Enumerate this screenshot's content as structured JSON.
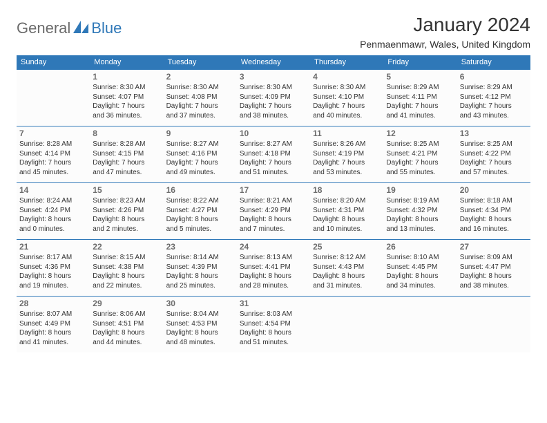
{
  "logo": {
    "part1": "General",
    "part2": "Blue"
  },
  "header": {
    "month_title": "January 2024",
    "location": "Penmaenmawr, Wales, United Kingdom"
  },
  "styling": {
    "accent_color": "#2f78b8",
    "header_bg": "#2f78b8",
    "header_text_color": "#ffffff",
    "body_bg": "#ffffff",
    "cell_bg": "#fcfcfc",
    "date_num_color": "#6b6b6b",
    "text_color": "#333333",
    "border_color": "#2f78b8",
    "month_title_fontsize": 28,
    "location_fontsize": 14,
    "header_fontsize": 11,
    "cell_fontsize": 10,
    "date_fontsize": 12
  },
  "calendar": {
    "columns": [
      "Sunday",
      "Monday",
      "Tuesday",
      "Wednesday",
      "Thursday",
      "Friday",
      "Saturday"
    ],
    "weeks": [
      [
        null,
        {
          "d": "1",
          "sr": "Sunrise: 8:30 AM",
          "ss": "Sunset: 4:07 PM",
          "dl1": "Daylight: 7 hours",
          "dl2": "and 36 minutes."
        },
        {
          "d": "2",
          "sr": "Sunrise: 8:30 AM",
          "ss": "Sunset: 4:08 PM",
          "dl1": "Daylight: 7 hours",
          "dl2": "and 37 minutes."
        },
        {
          "d": "3",
          "sr": "Sunrise: 8:30 AM",
          "ss": "Sunset: 4:09 PM",
          "dl1": "Daylight: 7 hours",
          "dl2": "and 38 minutes."
        },
        {
          "d": "4",
          "sr": "Sunrise: 8:30 AM",
          "ss": "Sunset: 4:10 PM",
          "dl1": "Daylight: 7 hours",
          "dl2": "and 40 minutes."
        },
        {
          "d": "5",
          "sr": "Sunrise: 8:29 AM",
          "ss": "Sunset: 4:11 PM",
          "dl1": "Daylight: 7 hours",
          "dl2": "and 41 minutes."
        },
        {
          "d": "6",
          "sr": "Sunrise: 8:29 AM",
          "ss": "Sunset: 4:12 PM",
          "dl1": "Daylight: 7 hours",
          "dl2": "and 43 minutes."
        }
      ],
      [
        {
          "d": "7",
          "sr": "Sunrise: 8:28 AM",
          "ss": "Sunset: 4:14 PM",
          "dl1": "Daylight: 7 hours",
          "dl2": "and 45 minutes."
        },
        {
          "d": "8",
          "sr": "Sunrise: 8:28 AM",
          "ss": "Sunset: 4:15 PM",
          "dl1": "Daylight: 7 hours",
          "dl2": "and 47 minutes."
        },
        {
          "d": "9",
          "sr": "Sunrise: 8:27 AM",
          "ss": "Sunset: 4:16 PM",
          "dl1": "Daylight: 7 hours",
          "dl2": "and 49 minutes."
        },
        {
          "d": "10",
          "sr": "Sunrise: 8:27 AM",
          "ss": "Sunset: 4:18 PM",
          "dl1": "Daylight: 7 hours",
          "dl2": "and 51 minutes."
        },
        {
          "d": "11",
          "sr": "Sunrise: 8:26 AM",
          "ss": "Sunset: 4:19 PM",
          "dl1": "Daylight: 7 hours",
          "dl2": "and 53 minutes."
        },
        {
          "d": "12",
          "sr": "Sunrise: 8:25 AM",
          "ss": "Sunset: 4:21 PM",
          "dl1": "Daylight: 7 hours",
          "dl2": "and 55 minutes."
        },
        {
          "d": "13",
          "sr": "Sunrise: 8:25 AM",
          "ss": "Sunset: 4:22 PM",
          "dl1": "Daylight: 7 hours",
          "dl2": "and 57 minutes."
        }
      ],
      [
        {
          "d": "14",
          "sr": "Sunrise: 8:24 AM",
          "ss": "Sunset: 4:24 PM",
          "dl1": "Daylight: 8 hours",
          "dl2": "and 0 minutes."
        },
        {
          "d": "15",
          "sr": "Sunrise: 8:23 AM",
          "ss": "Sunset: 4:26 PM",
          "dl1": "Daylight: 8 hours",
          "dl2": "and 2 minutes."
        },
        {
          "d": "16",
          "sr": "Sunrise: 8:22 AM",
          "ss": "Sunset: 4:27 PM",
          "dl1": "Daylight: 8 hours",
          "dl2": "and 5 minutes."
        },
        {
          "d": "17",
          "sr": "Sunrise: 8:21 AM",
          "ss": "Sunset: 4:29 PM",
          "dl1": "Daylight: 8 hours",
          "dl2": "and 7 minutes."
        },
        {
          "d": "18",
          "sr": "Sunrise: 8:20 AM",
          "ss": "Sunset: 4:31 PM",
          "dl1": "Daylight: 8 hours",
          "dl2": "and 10 minutes."
        },
        {
          "d": "19",
          "sr": "Sunrise: 8:19 AM",
          "ss": "Sunset: 4:32 PM",
          "dl1": "Daylight: 8 hours",
          "dl2": "and 13 minutes."
        },
        {
          "d": "20",
          "sr": "Sunrise: 8:18 AM",
          "ss": "Sunset: 4:34 PM",
          "dl1": "Daylight: 8 hours",
          "dl2": "and 16 minutes."
        }
      ],
      [
        {
          "d": "21",
          "sr": "Sunrise: 8:17 AM",
          "ss": "Sunset: 4:36 PM",
          "dl1": "Daylight: 8 hours",
          "dl2": "and 19 minutes."
        },
        {
          "d": "22",
          "sr": "Sunrise: 8:15 AM",
          "ss": "Sunset: 4:38 PM",
          "dl1": "Daylight: 8 hours",
          "dl2": "and 22 minutes."
        },
        {
          "d": "23",
          "sr": "Sunrise: 8:14 AM",
          "ss": "Sunset: 4:39 PM",
          "dl1": "Daylight: 8 hours",
          "dl2": "and 25 minutes."
        },
        {
          "d": "24",
          "sr": "Sunrise: 8:13 AM",
          "ss": "Sunset: 4:41 PM",
          "dl1": "Daylight: 8 hours",
          "dl2": "and 28 minutes."
        },
        {
          "d": "25",
          "sr": "Sunrise: 8:12 AM",
          "ss": "Sunset: 4:43 PM",
          "dl1": "Daylight: 8 hours",
          "dl2": "and 31 minutes."
        },
        {
          "d": "26",
          "sr": "Sunrise: 8:10 AM",
          "ss": "Sunset: 4:45 PM",
          "dl1": "Daylight: 8 hours",
          "dl2": "and 34 minutes."
        },
        {
          "d": "27",
          "sr": "Sunrise: 8:09 AM",
          "ss": "Sunset: 4:47 PM",
          "dl1": "Daylight: 8 hours",
          "dl2": "and 38 minutes."
        }
      ],
      [
        {
          "d": "28",
          "sr": "Sunrise: 8:07 AM",
          "ss": "Sunset: 4:49 PM",
          "dl1": "Daylight: 8 hours",
          "dl2": "and 41 minutes."
        },
        {
          "d": "29",
          "sr": "Sunrise: 8:06 AM",
          "ss": "Sunset: 4:51 PM",
          "dl1": "Daylight: 8 hours",
          "dl2": "and 44 minutes."
        },
        {
          "d": "30",
          "sr": "Sunrise: 8:04 AM",
          "ss": "Sunset: 4:53 PM",
          "dl1": "Daylight: 8 hours",
          "dl2": "and 48 minutes."
        },
        {
          "d": "31",
          "sr": "Sunrise: 8:03 AM",
          "ss": "Sunset: 4:54 PM",
          "dl1": "Daylight: 8 hours",
          "dl2": "and 51 minutes."
        },
        null,
        null,
        null
      ]
    ]
  }
}
